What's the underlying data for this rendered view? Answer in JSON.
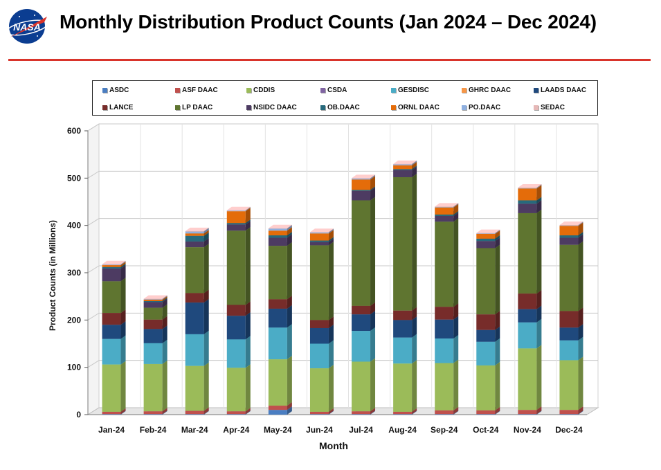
{
  "header": {
    "logo_text": "NASA",
    "title": "Monthly Distribution Product Counts (Jan 2024 – Dec 2024)"
  },
  "colors": {
    "accent_rule": "#d9342b"
  },
  "chart_data": {
    "type": "bar",
    "stacked": true,
    "title": "Monthly Distribution Product Counts (Jan 2024 – Dec 2024)",
    "xlabel": "Month",
    "ylabel": "Product Counts (in Millions)",
    "ylim": [
      0,
      600
    ],
    "yticks": [
      0,
      100,
      200,
      300,
      400,
      500,
      600
    ],
    "grid": true,
    "legend_position": "top",
    "categories": [
      "Jan-24",
      "Feb-24",
      "Mar-24",
      "Apr-24",
      "May-24",
      "Jun-24",
      "Jul-24",
      "Aug-24",
      "Sep-24",
      "Oct-24",
      "Nov-24",
      "Dec-24"
    ],
    "series": [
      {
        "name": "ASDC",
        "color": "#4a7ec2",
        "values": [
          1,
          1,
          1,
          1,
          10,
          1,
          1,
          1,
          1,
          1,
          1,
          1
        ]
      },
      {
        "name": "ASF DAAC",
        "color": "#c0504d",
        "values": [
          5,
          6,
          7,
          6,
          9,
          5,
          6,
          5,
          8,
          8,
          9,
          9
        ]
      },
      {
        "name": "CDDIS",
        "color": "#9bbb59",
        "values": [
          100,
          100,
          95,
          92,
          98,
          92,
          105,
          102,
          100,
          95,
          130,
          105
        ]
      },
      {
        "name": "CSDA",
        "color": "#8064a2",
        "values": [
          0,
          0,
          0,
          0,
          0,
          0,
          0,
          0,
          0,
          0,
          0,
          0
        ]
      },
      {
        "name": "GESDISC",
        "color": "#4bacc6",
        "values": [
          54,
          44,
          67,
          60,
          67,
          52,
          65,
          55,
          52,
          50,
          55,
          42
        ]
      },
      {
        "name": "GHRC DAAC",
        "color": "#f79646",
        "values": [
          0,
          0,
          0,
          0,
          0,
          0,
          0,
          0,
          0,
          0,
          0,
          0
        ]
      },
      {
        "name": "LAADS DAAC",
        "color": "#1f497d",
        "values": [
          30,
          30,
          67,
          50,
          40,
          33,
          35,
          37,
          40,
          25,
          28,
          27
        ]
      },
      {
        "name": "LANCE",
        "color": "#772c2a",
        "values": [
          25,
          20,
          20,
          23,
          20,
          17,
          18,
          20,
          27,
          33,
          33,
          35
        ]
      },
      {
        "name": "LP DAAC",
        "color": "#5f7530",
        "values": [
          67,
          25,
          97,
          157,
          113,
          158,
          223,
          282,
          180,
          140,
          170,
          140
        ]
      },
      {
        "name": "NSIDC DAAC",
        "color": "#4d3b62",
        "values": [
          27,
          12,
          12,
          13,
          17,
          7,
          20,
          15,
          12,
          15,
          20,
          15
        ]
      },
      {
        "name": "OB.DAAC",
        "color": "#276a7c",
        "values": [
          3,
          2,
          12,
          3,
          5,
          3,
          2,
          2,
          3,
          5,
          7,
          5
        ]
      },
      {
        "name": "ORNL DAAC",
        "color": "#e46c0a",
        "values": [
          4,
          3,
          5,
          25,
          10,
          15,
          22,
          8,
          15,
          10,
          25,
          20
        ]
      },
      {
        "name": "PO.DAAC",
        "color": "#8fb0e0",
        "values": [
          1,
          1,
          4,
          1,
          4,
          2,
          2,
          2,
          1,
          1,
          1,
          1
        ]
      },
      {
        "name": "SEDAC",
        "color": "#e6b8b7",
        "values": [
          1,
          1,
          1,
          1,
          1,
          1,
          1,
          1,
          1,
          1,
          1,
          1
        ]
      }
    ]
  }
}
